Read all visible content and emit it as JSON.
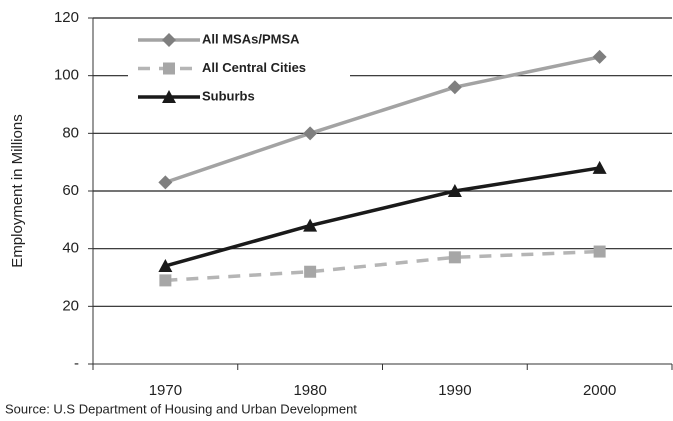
{
  "chart_data": {
    "type": "line",
    "y_label": "Employment in Millions",
    "source": "Source: U.S Department of Housing and Urban Development",
    "categories": [
      "1970",
      "1980",
      "1990",
      "2000"
    ],
    "series": [
      {
        "name": "All MSAs/PMSA",
        "color": "#a3a3a3",
        "marker_color": "#7f7f7f",
        "marker": "diamond",
        "dash": false,
        "values": [
          63,
          80,
          96,
          106.5
        ]
      },
      {
        "name": "All Central Cities",
        "color": "#b5b5b5",
        "marker_color": "#a6a6a6",
        "marker": "square",
        "dash": true,
        "values": [
          29,
          32,
          37,
          39
        ]
      },
      {
        "name": "Suburbs",
        "color": "#1a1a1a",
        "marker_color": "#1a1a1a",
        "marker": "triangle",
        "dash": false,
        "values": [
          34,
          48,
          60,
          68
        ]
      }
    ],
    "ylim": [
      0,
      120
    ],
    "yticks": [
      {
        "value": 0,
        "label": "-"
      },
      20,
      40,
      60,
      80,
      100,
      120
    ],
    "grid": true,
    "legend": "upper left"
  }
}
